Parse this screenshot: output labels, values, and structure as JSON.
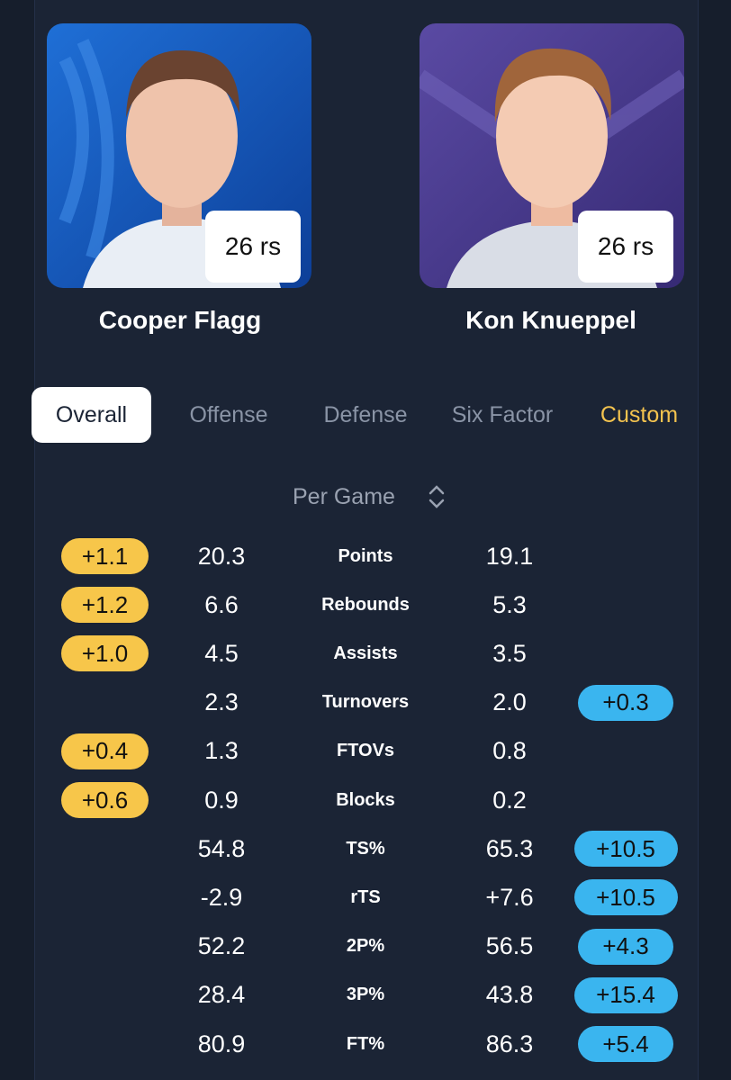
{
  "players": [
    {
      "name": "Cooper Flagg",
      "badge": "26 rs"
    },
    {
      "name": "Kon Knueppel",
      "badge": "26 rs"
    }
  ],
  "tabs": [
    "Overall",
    "Offense",
    "Defense",
    "Six Factor",
    "Custom"
  ],
  "selector": "Per Game",
  "rows": [
    {
      "stat": "Points",
      "left": "20.3",
      "right": "19.1",
      "left_diff": "+1.1"
    },
    {
      "stat": "Rebounds",
      "left": "6.6",
      "right": "5.3",
      "left_diff": "+1.2"
    },
    {
      "stat": "Assists",
      "left": "4.5",
      "right": "3.5",
      "left_diff": "+1.0"
    },
    {
      "stat": "Turnovers",
      "left": "2.3",
      "right": "2.0",
      "right_diff": "+0.3"
    },
    {
      "stat": "FTOVs",
      "left": "1.3",
      "right": "0.8",
      "left_diff": "+0.4"
    },
    {
      "stat": "Blocks",
      "left": "0.9",
      "right": "0.2",
      "left_diff": "+0.6"
    },
    {
      "stat": "TS%",
      "left": "54.8",
      "right": "65.3",
      "right_diff": "+10.5"
    },
    {
      "stat": "rTS",
      "left": "-2.9",
      "right": "+7.6",
      "right_diff": "+10.5"
    },
    {
      "stat": "2P%",
      "left": "52.2",
      "right": "56.5",
      "right_diff": "+4.3"
    },
    {
      "stat": "3P%",
      "left": "28.4",
      "right": "43.8",
      "right_diff": "+15.4"
    },
    {
      "stat": "FT%",
      "left": "80.9",
      "right": "86.3",
      "right_diff": "+5.4"
    }
  ]
}
